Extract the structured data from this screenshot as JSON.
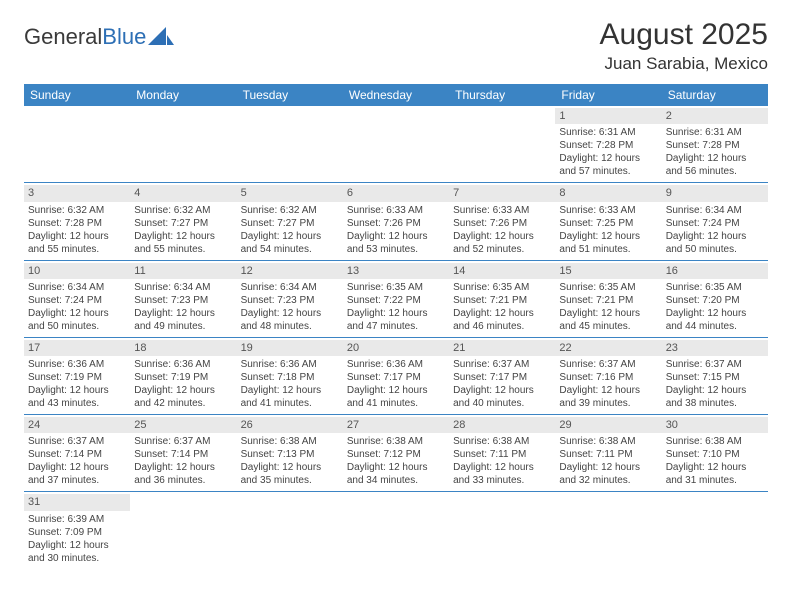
{
  "logo": {
    "text1": "General",
    "text2": "Blue"
  },
  "header": {
    "title": "August 2025",
    "location": "Juan Sarabia, Mexico"
  },
  "colors": {
    "header_bg": "#3b84c4",
    "header_text": "#ffffff",
    "daynum_bg": "#e9e9e9",
    "border": "#3b84c4",
    "text": "#444444"
  },
  "weekdays": [
    "Sunday",
    "Monday",
    "Tuesday",
    "Wednesday",
    "Thursday",
    "Friday",
    "Saturday"
  ],
  "weeks": [
    [
      null,
      null,
      null,
      null,
      null,
      {
        "n": "1",
        "sr": "Sunrise: 6:31 AM",
        "ss": "Sunset: 7:28 PM",
        "d1": "Daylight: 12 hours",
        "d2": "and 57 minutes."
      },
      {
        "n": "2",
        "sr": "Sunrise: 6:31 AM",
        "ss": "Sunset: 7:28 PM",
        "d1": "Daylight: 12 hours",
        "d2": "and 56 minutes."
      }
    ],
    [
      {
        "n": "3",
        "sr": "Sunrise: 6:32 AM",
        "ss": "Sunset: 7:28 PM",
        "d1": "Daylight: 12 hours",
        "d2": "and 55 minutes."
      },
      {
        "n": "4",
        "sr": "Sunrise: 6:32 AM",
        "ss": "Sunset: 7:27 PM",
        "d1": "Daylight: 12 hours",
        "d2": "and 55 minutes."
      },
      {
        "n": "5",
        "sr": "Sunrise: 6:32 AM",
        "ss": "Sunset: 7:27 PM",
        "d1": "Daylight: 12 hours",
        "d2": "and 54 minutes."
      },
      {
        "n": "6",
        "sr": "Sunrise: 6:33 AM",
        "ss": "Sunset: 7:26 PM",
        "d1": "Daylight: 12 hours",
        "d2": "and 53 minutes."
      },
      {
        "n": "7",
        "sr": "Sunrise: 6:33 AM",
        "ss": "Sunset: 7:26 PM",
        "d1": "Daylight: 12 hours",
        "d2": "and 52 minutes."
      },
      {
        "n": "8",
        "sr": "Sunrise: 6:33 AM",
        "ss": "Sunset: 7:25 PM",
        "d1": "Daylight: 12 hours",
        "d2": "and 51 minutes."
      },
      {
        "n": "9",
        "sr": "Sunrise: 6:34 AM",
        "ss": "Sunset: 7:24 PM",
        "d1": "Daylight: 12 hours",
        "d2": "and 50 minutes."
      }
    ],
    [
      {
        "n": "10",
        "sr": "Sunrise: 6:34 AM",
        "ss": "Sunset: 7:24 PM",
        "d1": "Daylight: 12 hours",
        "d2": "and 50 minutes."
      },
      {
        "n": "11",
        "sr": "Sunrise: 6:34 AM",
        "ss": "Sunset: 7:23 PM",
        "d1": "Daylight: 12 hours",
        "d2": "and 49 minutes."
      },
      {
        "n": "12",
        "sr": "Sunrise: 6:34 AM",
        "ss": "Sunset: 7:23 PM",
        "d1": "Daylight: 12 hours",
        "d2": "and 48 minutes."
      },
      {
        "n": "13",
        "sr": "Sunrise: 6:35 AM",
        "ss": "Sunset: 7:22 PM",
        "d1": "Daylight: 12 hours",
        "d2": "and 47 minutes."
      },
      {
        "n": "14",
        "sr": "Sunrise: 6:35 AM",
        "ss": "Sunset: 7:21 PM",
        "d1": "Daylight: 12 hours",
        "d2": "and 46 minutes."
      },
      {
        "n": "15",
        "sr": "Sunrise: 6:35 AM",
        "ss": "Sunset: 7:21 PM",
        "d1": "Daylight: 12 hours",
        "d2": "and 45 minutes."
      },
      {
        "n": "16",
        "sr": "Sunrise: 6:35 AM",
        "ss": "Sunset: 7:20 PM",
        "d1": "Daylight: 12 hours",
        "d2": "and 44 minutes."
      }
    ],
    [
      {
        "n": "17",
        "sr": "Sunrise: 6:36 AM",
        "ss": "Sunset: 7:19 PM",
        "d1": "Daylight: 12 hours",
        "d2": "and 43 minutes."
      },
      {
        "n": "18",
        "sr": "Sunrise: 6:36 AM",
        "ss": "Sunset: 7:19 PM",
        "d1": "Daylight: 12 hours",
        "d2": "and 42 minutes."
      },
      {
        "n": "19",
        "sr": "Sunrise: 6:36 AM",
        "ss": "Sunset: 7:18 PM",
        "d1": "Daylight: 12 hours",
        "d2": "and 41 minutes."
      },
      {
        "n": "20",
        "sr": "Sunrise: 6:36 AM",
        "ss": "Sunset: 7:17 PM",
        "d1": "Daylight: 12 hours",
        "d2": "and 41 minutes."
      },
      {
        "n": "21",
        "sr": "Sunrise: 6:37 AM",
        "ss": "Sunset: 7:17 PM",
        "d1": "Daylight: 12 hours",
        "d2": "and 40 minutes."
      },
      {
        "n": "22",
        "sr": "Sunrise: 6:37 AM",
        "ss": "Sunset: 7:16 PM",
        "d1": "Daylight: 12 hours",
        "d2": "and 39 minutes."
      },
      {
        "n": "23",
        "sr": "Sunrise: 6:37 AM",
        "ss": "Sunset: 7:15 PM",
        "d1": "Daylight: 12 hours",
        "d2": "and 38 minutes."
      }
    ],
    [
      {
        "n": "24",
        "sr": "Sunrise: 6:37 AM",
        "ss": "Sunset: 7:14 PM",
        "d1": "Daylight: 12 hours",
        "d2": "and 37 minutes."
      },
      {
        "n": "25",
        "sr": "Sunrise: 6:37 AM",
        "ss": "Sunset: 7:14 PM",
        "d1": "Daylight: 12 hours",
        "d2": "and 36 minutes."
      },
      {
        "n": "26",
        "sr": "Sunrise: 6:38 AM",
        "ss": "Sunset: 7:13 PM",
        "d1": "Daylight: 12 hours",
        "d2": "and 35 minutes."
      },
      {
        "n": "27",
        "sr": "Sunrise: 6:38 AM",
        "ss": "Sunset: 7:12 PM",
        "d1": "Daylight: 12 hours",
        "d2": "and 34 minutes."
      },
      {
        "n": "28",
        "sr": "Sunrise: 6:38 AM",
        "ss": "Sunset: 7:11 PM",
        "d1": "Daylight: 12 hours",
        "d2": "and 33 minutes."
      },
      {
        "n": "29",
        "sr": "Sunrise: 6:38 AM",
        "ss": "Sunset: 7:11 PM",
        "d1": "Daylight: 12 hours",
        "d2": "and 32 minutes."
      },
      {
        "n": "30",
        "sr": "Sunrise: 6:38 AM",
        "ss": "Sunset: 7:10 PM",
        "d1": "Daylight: 12 hours",
        "d2": "and 31 minutes."
      }
    ],
    [
      {
        "n": "31",
        "sr": "Sunrise: 6:39 AM",
        "ss": "Sunset: 7:09 PM",
        "d1": "Daylight: 12 hours",
        "d2": "and 30 minutes."
      },
      null,
      null,
      null,
      null,
      null,
      null
    ]
  ]
}
